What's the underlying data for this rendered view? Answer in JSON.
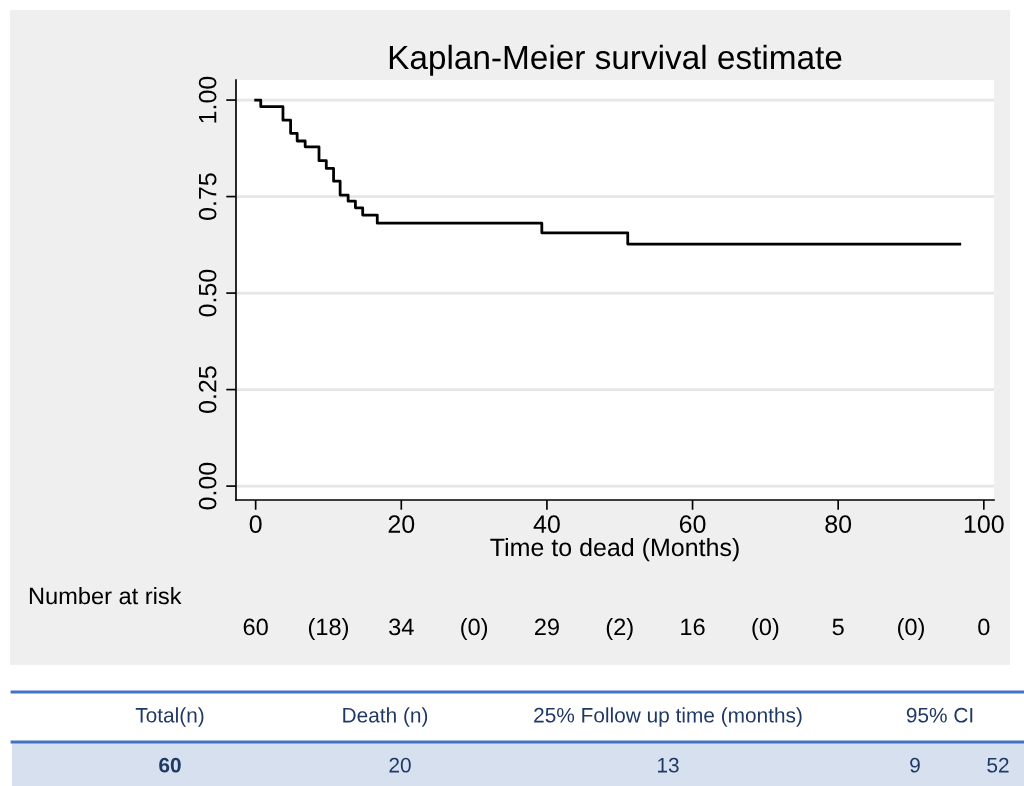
{
  "chart_data": {
    "type": "step",
    "title": "Kaplan-Meier survival estimate",
    "xlabel": "Time to dead (Months)",
    "x": [
      0,
      0.7,
      3.75,
      4.8,
      5.7,
      6.8,
      8.7,
      9.7,
      10.7,
      11.6,
      12.7,
      13.7,
      14.7,
      16.7,
      39.3,
      51.1,
      96.7
    ],
    "series": [
      {
        "color": "#000000",
        "values": [
          1.0,
          0.983,
          0.948,
          0.914,
          0.894,
          0.879,
          0.843,
          0.823,
          0.79,
          0.754,
          0.738,
          0.721,
          0.702,
          0.681,
          0.656,
          0.627,
          0.627
        ]
      }
    ],
    "xlim": [
      -2.7,
      101.4
    ],
    "ylim": [
      -0.036,
      1.052
    ],
    "xticks": [
      0,
      20,
      40,
      60,
      80,
      100
    ],
    "yticks": [
      {
        "value": 0,
        "label": "0.00"
      },
      {
        "value": 0.25,
        "label": "0.25"
      },
      {
        "value": 0.5,
        "label": "0.50"
      },
      {
        "value": 0.75,
        "label": "0.75"
      },
      {
        "value": 1,
        "label": "1.00"
      }
    ],
    "grid": "y",
    "legend": false,
    "annotations": [
      "Number at risk",
      "60",
      "(18)",
      "34",
      "(0)",
      "29",
      "(2)",
      "16",
      "(0)",
      "5",
      "(0)",
      "0",
      "Total(n)",
      "Death (n)",
      "25% Follow up time (months)",
      "95% CI",
      "60",
      "20",
      "13",
      "9",
      "52"
    ]
  }
}
